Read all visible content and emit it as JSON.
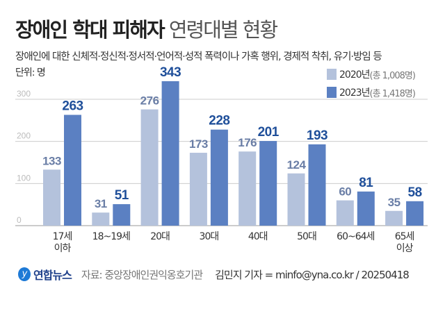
{
  "title": {
    "bold": "장애인 학대 피해자",
    "light": "연령대별 현황"
  },
  "subtitle": "장애인에 대한 신체적·정신적·정서적·언어적·성적 폭력이나 가혹 행위, 경제적 착취, 유기·방임 등",
  "unit": "단위: 명",
  "footer": {
    "brand": "연합뉴스",
    "source": "자료: 중앙장애인권익옹호기관",
    "credit": "김민지 기자 = minfo@yna.co.kr / 20250418"
  },
  "chart_data": {
    "type": "bar",
    "categories": [
      "17세 이하",
      "18~19세",
      "20대",
      "30대",
      "40대",
      "50대",
      "60~64세",
      "65세 이상"
    ],
    "series": [
      {
        "name": "2020년",
        "note": "(총 1,008명)",
        "color": "#b4c2dc",
        "values": [
          133,
          31,
          276,
          173,
          176,
          124,
          60,
          35
        ]
      },
      {
        "name": "2023년",
        "note": "(총 1,418명)",
        "color": "#5b80c2",
        "values": [
          263,
          51,
          343,
          228,
          201,
          193,
          81,
          58
        ]
      }
    ],
    "yticks": [
      0,
      100,
      200,
      300
    ],
    "ylim": [
      0,
      350
    ],
    "grid": true,
    "legend": "top-right"
  }
}
